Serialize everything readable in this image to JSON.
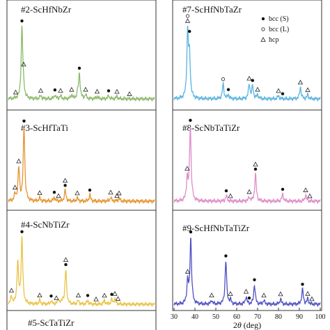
{
  "chart_data": [
    {
      "type": "line",
      "title": "#2-ScHfNbZr",
      "color": "#8bb96a",
      "grid": false,
      "peaks": [
        {
          "x": 36.5,
          "h": 0.93
        },
        {
          "x": 37.3,
          "h": 0.1
        },
        {
          "x": 45.5,
          "h": 0.04
        },
        {
          "x": 52.3,
          "h": 0.05
        },
        {
          "x": 55.0,
          "h": 0.04
        },
        {
          "x": 60.3,
          "h": 0.05
        },
        {
          "x": 63.2,
          "h": 0.06
        },
        {
          "x": 64.0,
          "h": 0.32
        },
        {
          "x": 67.0,
          "h": 0.05
        },
        {
          "x": 72.5,
          "h": 0.03
        },
        {
          "x": 78.0,
          "h": 0.04
        },
        {
          "x": 82.0,
          "h": 0.03
        }
      ]
    },
    {
      "type": "line",
      "title": "#3-ScHfTaTi",
      "color": "#e59430",
      "grid": false,
      "peaks": [
        {
          "x": 35.0,
          "h": 0.42
        },
        {
          "x": 37.5,
          "h": 0.96
        },
        {
          "x": 33.2,
          "h": 0.08
        },
        {
          "x": 45.0,
          "h": 0.04
        },
        {
          "x": 52.0,
          "h": 0.05
        },
        {
          "x": 57.2,
          "h": 0.14
        },
        {
          "x": 63.0,
          "h": 0.04
        },
        {
          "x": 69.0,
          "h": 0.08
        },
        {
          "x": 79.0,
          "h": 0.05
        },
        {
          "x": 83.0,
          "h": 0.04
        }
      ]
    },
    {
      "type": "line",
      "title": "#4-ScNbTiZr",
      "color": "#e9c244",
      "grid": false,
      "peaks": [
        {
          "x": 34.5,
          "h": 0.55
        },
        {
          "x": 36.5,
          "h": 0.88
        },
        {
          "x": 31.5,
          "h": 0.1
        },
        {
          "x": 45.0,
          "h": 0.05
        },
        {
          "x": 50.5,
          "h": 0.04
        },
        {
          "x": 54.0,
          "h": 0.06
        },
        {
          "x": 56.0,
          "h": 0.05
        },
        {
          "x": 57.5,
          "h": 0.46
        },
        {
          "x": 63.5,
          "h": 0.05
        },
        {
          "x": 68.0,
          "h": 0.05
        },
        {
          "x": 76.0,
          "h": 0.05
        },
        {
          "x": 79.5,
          "h": 0.06
        },
        {
          "x": 81.0,
          "h": 0.07
        }
      ]
    },
    {
      "type": "line",
      "title": "#7-ScHfNbTaZr",
      "color": "#5ab3e0",
      "grid": false,
      "peaks": [
        {
          "x": 36.5,
          "h": 0.85
        },
        {
          "x": 37.4,
          "h": 0.52
        },
        {
          "x": 53.5,
          "h": 0.19
        },
        {
          "x": 56.0,
          "h": 0.05
        },
        {
          "x": 66.0,
          "h": 0.19
        },
        {
          "x": 67.6,
          "h": 0.16
        },
        {
          "x": 70.0,
          "h": 0.05
        },
        {
          "x": 80.0,
          "h": 0.04
        },
        {
          "x": 90.5,
          "h": 0.15
        },
        {
          "x": 94.0,
          "h": 0.05
        }
      ]
    },
    {
      "type": "line",
      "title": "#8-ScNbTaTiZr",
      "color": "#de8cc8",
      "grid": false,
      "peaks": [
        {
          "x": 36.3,
          "h": 0.28
        },
        {
          "x": 37.8,
          "h": 0.96
        },
        {
          "x": 55.0,
          "h": 0.07
        },
        {
          "x": 66.0,
          "h": 0.05
        },
        {
          "x": 69.0,
          "h": 0.35
        },
        {
          "x": 82.0,
          "h": 0.09
        },
        {
          "x": 93.0,
          "h": 0.08
        }
      ]
    },
    {
      "type": "line",
      "title": "#9-ScHfNbTaTiZr",
      "color": "#4f4fc4",
      "grid": false,
      "peaks": [
        {
          "x": 36.5,
          "h": 0.3
        },
        {
          "x": 38.0,
          "h": 0.88
        },
        {
          "x": 48.0,
          "h": 0.05
        },
        {
          "x": 54.8,
          "h": 0.58
        },
        {
          "x": 57.0,
          "h": 0.05
        },
        {
          "x": 64.5,
          "h": 0.1
        },
        {
          "x": 68.5,
          "h": 0.26
        },
        {
          "x": 73.0,
          "h": 0.05
        },
        {
          "x": 81.0,
          "h": 0.07
        },
        {
          "x": 91.5,
          "h": 0.2
        },
        {
          "x": 94.0,
          "h": 0.07
        }
      ]
    },
    {
      "type": "line",
      "title": "#5-ScTaTiZr",
      "color": "#888888",
      "grid": false,
      "peaks": []
    }
  ],
  "shared": {
    "xlabel_prefix": "2",
    "xlabel_theta": "θ",
    "xlabel_suffix": " (deg)",
    "xticks": [
      "30",
      "40",
      "50",
      "60",
      "70",
      "80",
      "90",
      "100"
    ],
    "xlim": [
      30,
      100
    ],
    "legend": [
      {
        "symbol": "filled-circle",
        "label": "bcc (S)"
      },
      {
        "symbol": "open-circle",
        "label": "bcc (L)"
      },
      {
        "symbol": "triangle",
        "label": "hcp"
      }
    ]
  },
  "markers": {
    "0": [
      {
        "x": 36.5,
        "s": "filled-circle"
      },
      {
        "x": 37.3,
        "s": "triangle"
      },
      {
        "x": 33.5,
        "s": "triangle"
      },
      {
        "x": 45.5,
        "s": "triangle"
      },
      {
        "x": 52.3,
        "s": "filled-circle"
      },
      {
        "x": 55.0,
        "s": "triangle"
      },
      {
        "x": 60.3,
        "s": "triangle"
      },
      {
        "x": 64.0,
        "s": "filled-circle"
      },
      {
        "x": 67.0,
        "s": "triangle"
      },
      {
        "x": 72.5,
        "s": "triangle"
      },
      {
        "x": 78.0,
        "s": "filled-circle"
      },
      {
        "x": 82.0,
        "s": "triangle"
      },
      {
        "x": 88.0,
        "s": "triangle"
      }
    ],
    "1": [
      {
        "x": 37.5,
        "s": "filled-circle"
      },
      {
        "x": 35.0,
        "s": "triangle"
      },
      {
        "x": 33.2,
        "s": "triangle"
      },
      {
        "x": 45.0,
        "s": "triangle"
      },
      {
        "x": 52.0,
        "s": "filled-circle"
      },
      {
        "x": 54.0,
        "s": "triangle"
      },
      {
        "x": 57.2,
        "s": "filled-circle"
      },
      {
        "x": 57.2,
        "s": "triangle"
      },
      {
        "x": 63.0,
        "s": "triangle"
      },
      {
        "x": 69.0,
        "s": "filled-circle"
      },
      {
        "x": 79.0,
        "s": "triangle"
      },
      {
        "x": 83.0,
        "s": "triangle"
      },
      {
        "x": 82.0,
        "s": "triangle"
      }
    ],
    "2": [
      {
        "x": 36.5,
        "s": "filled-circle"
      },
      {
        "x": 31.5,
        "s": "triangle"
      },
      {
        "x": 45.0,
        "s": "triangle"
      },
      {
        "x": 50.5,
        "s": "filled-circle"
      },
      {
        "x": 53.0,
        "s": "triangle"
      },
      {
        "x": 57.5,
        "s": "filled-circle"
      },
      {
        "x": 57.5,
        "s": "triangle"
      },
      {
        "x": 63.5,
        "s": "triangle"
      },
      {
        "x": 68.0,
        "s": "filled-circle"
      },
      {
        "x": 72.0,
        "s": "triangle"
      },
      {
        "x": 76.0,
        "s": "triangle"
      },
      {
        "x": 79.5,
        "s": "filled-circle"
      },
      {
        "x": 81.0,
        "s": "triangle"
      },
      {
        "x": 82.5,
        "s": "triangle"
      }
    ],
    "3": [
      {
        "x": 36.5,
        "s": "triangle"
      },
      {
        "x": 36.5,
        "s": "open-circle"
      },
      {
        "x": 37.4,
        "s": "filled-circle"
      },
      {
        "x": 53.5,
        "s": "open-circle"
      },
      {
        "x": 56.0,
        "s": "filled-circle"
      },
      {
        "x": 66.0,
        "s": "triangle"
      },
      {
        "x": 67.6,
        "s": "filled-circle"
      },
      {
        "x": 70.0,
        "s": "triangle"
      },
      {
        "x": 80.0,
        "s": "triangle"
      },
      {
        "x": 82.0,
        "s": "filled-circle"
      },
      {
        "x": 90.5,
        "s": "triangle"
      },
      {
        "x": 94.0,
        "s": "triangle"
      }
    ],
    "4": [
      {
        "x": 36.3,
        "s": "triangle"
      },
      {
        "x": 37.8,
        "s": "filled-circle"
      },
      {
        "x": 55.0,
        "s": "filled-circle"
      },
      {
        "x": 57.0,
        "s": "triangle"
      },
      {
        "x": 66.0,
        "s": "triangle"
      },
      {
        "x": 69.0,
        "s": "filled-circle"
      },
      {
        "x": 69.0,
        "s": "triangle"
      },
      {
        "x": 82.0,
        "s": "filled-circle"
      },
      {
        "x": 93.0,
        "s": "triangle"
      },
      {
        "x": 95.0,
        "s": "triangle"
      }
    ],
    "5": [
      {
        "x": 38.0,
        "s": "filled-circle"
      },
      {
        "x": 36.5,
        "s": "triangle"
      },
      {
        "x": 48.0,
        "s": "triangle"
      },
      {
        "x": 54.8,
        "s": "filled-circle"
      },
      {
        "x": 57.0,
        "s": "triangle"
      },
      {
        "x": 64.5,
        "s": "triangle"
      },
      {
        "x": 68.5,
        "s": "filled-circle"
      },
      {
        "x": 66.0,
        "s": "filled-circle"
      },
      {
        "x": 73.0,
        "s": "triangle"
      },
      {
        "x": 81.0,
        "s": "triangle"
      },
      {
        "x": 91.5,
        "s": "filled-circle"
      },
      {
        "x": 94.0,
        "s": "triangle"
      },
      {
        "x": 96.0,
        "s": "triangle"
      }
    ]
  }
}
